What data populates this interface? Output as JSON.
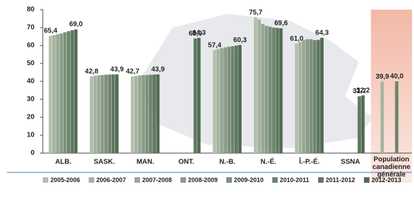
{
  "chart_data": {
    "type": "bar",
    "categories": [
      "ALB.",
      "SASK.",
      "MAN.",
      "ONT.",
      "N.-B.",
      "N.-É.",
      "Î.-P.-É.",
      "SSNA",
      "Population canadienne générale"
    ],
    "ylim": [
      0,
      80
    ],
    "yticks": [
      0,
      10,
      20,
      30,
      40,
      50,
      60,
      70,
      80
    ],
    "grid": false,
    "series": [
      {
        "name": "2005-2006",
        "color": "#b3bfae",
        "values": [
          65.4,
          42.8,
          42.7,
          null,
          57.4,
          75.7,
          61.0,
          null,
          null
        ],
        "value_labels": [
          "65,4",
          "42,8",
          "42,7",
          null,
          "57,4",
          "75,7",
          "61,0",
          null,
          null
        ]
      },
      {
        "name": "2006-2007",
        "color": "#a5b3a0",
        "values": [
          65.8,
          43.2,
          43.0,
          null,
          58.0,
          74.5,
          62.0,
          null,
          39.9
        ],
        "value_labels": [
          null,
          null,
          null,
          null,
          null,
          null,
          null,
          null,
          "39,9"
        ]
      },
      {
        "name": "2007-2008",
        "color": "#97a893",
        "values": [
          66.3,
          43.4,
          43.3,
          null,
          58.5,
          72.0,
          63.0,
          null,
          null
        ]
      },
      {
        "name": "2008-2009",
        "color": "#899c86",
        "values": [
          66.8,
          43.6,
          43.5,
          null,
          59.0,
          71.0,
          63.5,
          null,
          null
        ]
      },
      {
        "name": "2009-2010",
        "color": "#7b9079",
        "values": [
          67.4,
          43.7,
          43.6,
          null,
          59.3,
          70.5,
          63.5,
          null,
          null
        ]
      },
      {
        "name": "2010-2011",
        "color": "#6d846c",
        "values": [
          68.0,
          43.8,
          43.7,
          null,
          59.6,
          70.0,
          63.0,
          null,
          40.0
        ],
        "value_labels": [
          null,
          null,
          null,
          null,
          null,
          null,
          null,
          null,
          "40,0"
        ]
      },
      {
        "name": "2011-2012",
        "color": "#5f7860",
        "values": [
          68.5,
          43.9,
          43.8,
          63.9,
          60.0,
          69.8,
          63.2,
          31.7,
          null
        ],
        "value_labels": [
          null,
          null,
          null,
          "63,9",
          null,
          null,
          null,
          "31,7",
          null
        ]
      },
      {
        "name": "2012-2013",
        "color": "#506b53",
        "values": [
          69.0,
          43.9,
          43.9,
          64.3,
          60.3,
          69.6,
          64.3,
          32.2,
          null
        ],
        "value_labels": [
          "69,0",
          "43,9",
          "43,9",
          "64,3",
          "60,3",
          "69,6",
          "64,3",
          "32,2",
          null
        ]
      }
    ]
  }
}
